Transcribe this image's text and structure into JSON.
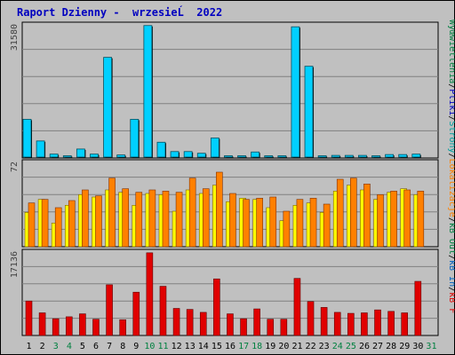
{
  "title": "Raport Dzienny -  wrzesieĹ  2022",
  "colors": {
    "background": "#c0c0c0",
    "panel_grid": "#808080",
    "title": "#0000c0",
    "visits": "#00d0ff",
    "visits_border": "#005060",
    "pages": "#ffff00",
    "hits": "#ff8000",
    "kb": "#e00000",
    "weekday": "#000000",
    "weekend": "#008040"
  },
  "legend": [
    {
      "text": "Wyœwietlenia",
      "color": "#008040"
    },
    {
      "text": "/",
      "color": "#000000"
    },
    {
      "text": "Pliki",
      "color": "#0000c0"
    },
    {
      "text": "/",
      "color": "#000000"
    },
    {
      "text": "Strony",
      "color": "#00a0a0"
    },
    {
      "text": "/",
      "color": "#000000"
    },
    {
      "text": "Lokalizacje",
      "color": "#ff8000"
    },
    {
      "text": "/",
      "color": "#000000"
    },
    {
      "text": "kB Out",
      "color": "#008040"
    },
    {
      "text": "/",
      "color": "#000000"
    },
    {
      "text": "kB In",
      "color": "#0060c0"
    },
    {
      "text": "/",
      "color": "#000000"
    },
    {
      "text": "kB F",
      "color": "#e00000"
    }
  ],
  "chart_data": [
    {
      "type": "bar",
      "ylim": [
        0,
        31580
      ],
      "ytick_label": "31580",
      "x": [
        1,
        2,
        3,
        4,
        5,
        6,
        7,
        8,
        9,
        10,
        11,
        12,
        13,
        14,
        15,
        16,
        17,
        18,
        19,
        20,
        21,
        22,
        23,
        24,
        25,
        26,
        27,
        28,
        29,
        30,
        31
      ],
      "values": [
        8900,
        3800,
        700,
        200,
        1900,
        700,
        23500,
        500,
        8900,
        31000,
        3500,
        1300,
        1300,
        900,
        4500,
        300,
        300,
        1200,
        200,
        200,
        30700,
        21400,
        300,
        400,
        400,
        400,
        200,
        600,
        600,
        700,
        null
      ]
    },
    {
      "type": "bar",
      "ylim": [
        0,
        72
      ],
      "ytick_label": "72",
      "x": [
        1,
        2,
        3,
        4,
        5,
        6,
        7,
        8,
        9,
        10,
        11,
        12,
        13,
        14,
        15,
        16,
        17,
        18,
        19,
        20,
        21,
        22,
        23,
        24,
        25,
        26,
        27,
        28,
        29,
        30,
        31
      ],
      "series": [
        {
          "values": [
            29,
            40,
            20,
            35,
            44,
            42,
            48,
            46,
            35,
            45,
            44,
            30,
            48,
            45,
            52,
            38,
            41,
            40,
            33,
            22,
            35,
            37,
            29,
            47,
            52,
            48,
            40,
            46,
            49,
            44,
            null
          ]
        },
        {
          "values": [
            37,
            40,
            33,
            39,
            48,
            43,
            58,
            49,
            46,
            48,
            47,
            46,
            58,
            49,
            63,
            45,
            40,
            41,
            42,
            30,
            40,
            41,
            36,
            57,
            58,
            53,
            44,
            47,
            48,
            47,
            null
          ]
        }
      ]
    },
    {
      "type": "bar",
      "ylim": [
        0,
        17136
      ],
      "ytick_label": "17136",
      "x": [
        1,
        2,
        3,
        4,
        5,
        6,
        7,
        8,
        9,
        10,
        11,
        12,
        13,
        14,
        15,
        16,
        17,
        18,
        19,
        20,
        21,
        22,
        23,
        24,
        25,
        26,
        27,
        28,
        29,
        30,
        31
      ],
      "values": [
        7000,
        4600,
        3400,
        3800,
        4400,
        3300,
        10300,
        3200,
        8800,
        16800,
        10000,
        5500,
        5300,
        4700,
        11500,
        4400,
        3400,
        5400,
        3300,
        3300,
        11600,
        6900,
        5700,
        4700,
        4500,
        4600,
        5200,
        4900,
        4600,
        11000,
        null
      ]
    }
  ],
  "days": [
    {
      "label": "1",
      "weekend": false
    },
    {
      "label": "2",
      "weekend": false
    },
    {
      "label": "3",
      "weekend": true
    },
    {
      "label": "4",
      "weekend": true
    },
    {
      "label": "5",
      "weekend": false
    },
    {
      "label": "6",
      "weekend": false
    },
    {
      "label": "7",
      "weekend": false
    },
    {
      "label": "8",
      "weekend": false
    },
    {
      "label": "9",
      "weekend": false
    },
    {
      "label": "10",
      "weekend": true
    },
    {
      "label": "11",
      "weekend": true
    },
    {
      "label": "12",
      "weekend": false
    },
    {
      "label": "13",
      "weekend": false
    },
    {
      "label": "14",
      "weekend": false
    },
    {
      "label": "15",
      "weekend": false
    },
    {
      "label": "16",
      "weekend": false
    },
    {
      "label": "17",
      "weekend": true
    },
    {
      "label": "18",
      "weekend": true
    },
    {
      "label": "19",
      "weekend": false
    },
    {
      "label": "20",
      "weekend": false
    },
    {
      "label": "21",
      "weekend": false
    },
    {
      "label": "22",
      "weekend": false
    },
    {
      "label": "23",
      "weekend": false
    },
    {
      "label": "24",
      "weekend": true
    },
    {
      "label": "25",
      "weekend": true
    },
    {
      "label": "26",
      "weekend": false
    },
    {
      "label": "27",
      "weekend": false
    },
    {
      "label": "28",
      "weekend": false
    },
    {
      "label": "29",
      "weekend": false
    },
    {
      "label": "30",
      "weekend": false
    },
    {
      "label": "31",
      "weekend": true
    }
  ]
}
